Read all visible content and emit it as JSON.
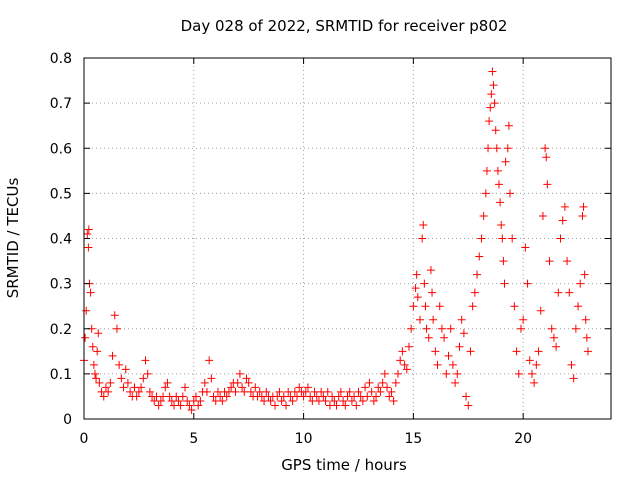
{
  "chart_data": {
    "type": "scatter",
    "title": "Day 028 of 2022, SRMTID for receiver p802",
    "xlabel": "GPS time / hours",
    "ylabel": "SRMTID / TECUs",
    "xlim": [
      0,
      24
    ],
    "ylim": [
      0,
      0.8
    ],
    "x_ticks": [
      0,
      5,
      10,
      15,
      20
    ],
    "y_ticks": [
      0,
      0.1,
      0.2,
      0.3,
      0.4,
      0.5,
      0.6,
      0.7,
      0.8
    ],
    "x_tick_labels": [
      "0",
      "5",
      "10",
      "15",
      "20"
    ],
    "y_tick_labels": [
      "0",
      "0.1",
      "0.2",
      "0.3",
      "0.4",
      "0.5",
      "0.6",
      "0.7",
      "0.8"
    ],
    "grid": true,
    "marker": "+",
    "color": "#ff0000",
    "series": [
      {
        "name": "SRMTID",
        "points": [
          [
            0.0,
            0.13
          ],
          [
            0.05,
            0.18
          ],
          [
            0.1,
            0.24
          ],
          [
            0.15,
            0.41
          ],
          [
            0.2,
            0.38
          ],
          [
            0.22,
            0.42
          ],
          [
            0.25,
            0.3
          ],
          [
            0.3,
            0.28
          ],
          [
            0.35,
            0.2
          ],
          [
            0.4,
            0.16
          ],
          [
            0.45,
            0.12
          ],
          [
            0.5,
            0.1
          ],
          [
            0.55,
            0.09
          ],
          [
            0.6,
            0.15
          ],
          [
            0.65,
            0.19
          ],
          [
            0.7,
            0.08
          ],
          [
            0.8,
            0.06
          ],
          [
            0.9,
            0.05
          ],
          [
            1.0,
            0.07
          ],
          [
            1.1,
            0.06
          ],
          [
            1.2,
            0.08
          ],
          [
            1.3,
            0.14
          ],
          [
            1.4,
            0.23
          ],
          [
            1.5,
            0.2
          ],
          [
            1.6,
            0.12
          ],
          [
            1.7,
            0.09
          ],
          [
            1.8,
            0.07
          ],
          [
            1.9,
            0.11
          ],
          [
            2.0,
            0.08
          ],
          [
            2.1,
            0.06
          ],
          [
            2.2,
            0.05
          ],
          [
            2.3,
            0.07
          ],
          [
            2.4,
            0.05
          ],
          [
            2.5,
            0.06
          ],
          [
            2.6,
            0.07
          ],
          [
            2.7,
            0.09
          ],
          [
            2.8,
            0.13
          ],
          [
            2.9,
            0.1
          ],
          [
            3.0,
            0.06
          ],
          [
            3.1,
            0.05
          ],
          [
            3.2,
            0.04
          ],
          [
            3.3,
            0.05
          ],
          [
            3.4,
            0.03
          ],
          [
            3.5,
            0.04
          ],
          [
            3.6,
            0.05
          ],
          [
            3.7,
            0.07
          ],
          [
            3.8,
            0.08
          ],
          [
            3.9,
            0.05
          ],
          [
            4.0,
            0.04
          ],
          [
            4.1,
            0.03
          ],
          [
            4.2,
            0.05
          ],
          [
            4.3,
            0.04
          ],
          [
            4.4,
            0.03
          ],
          [
            4.5,
            0.05
          ],
          [
            4.6,
            0.07
          ],
          [
            4.7,
            0.04
          ],
          [
            4.8,
            0.03
          ],
          [
            4.9,
            0.02
          ],
          [
            5.0,
            0.04
          ],
          [
            5.1,
            0.05
          ],
          [
            5.2,
            0.03
          ],
          [
            5.3,
            0.04
          ],
          [
            5.4,
            0.06
          ],
          [
            5.5,
            0.08
          ],
          [
            5.6,
            0.06
          ],
          [
            5.7,
            0.13
          ],
          [
            5.8,
            0.09
          ],
          [
            5.9,
            0.05
          ],
          [
            6.0,
            0.04
          ],
          [
            6.1,
            0.06
          ],
          [
            6.2,
            0.05
          ],
          [
            6.3,
            0.04
          ],
          [
            6.4,
            0.06
          ],
          [
            6.5,
            0.05
          ],
          [
            6.6,
            0.06
          ],
          [
            6.7,
            0.07
          ],
          [
            6.8,
            0.08
          ],
          [
            6.9,
            0.06
          ],
          [
            7.0,
            0.08
          ],
          [
            7.1,
            0.1
          ],
          [
            7.2,
            0.07
          ],
          [
            7.3,
            0.06
          ],
          [
            7.4,
            0.09
          ],
          [
            7.5,
            0.08
          ],
          [
            7.6,
            0.06
          ],
          [
            7.7,
            0.05
          ],
          [
            7.8,
            0.07
          ],
          [
            7.9,
            0.05
          ],
          [
            8.0,
            0.06
          ],
          [
            8.1,
            0.05
          ],
          [
            8.2,
            0.04
          ],
          [
            8.3,
            0.06
          ],
          [
            8.4,
            0.05
          ],
          [
            8.5,
            0.04
          ],
          [
            8.6,
            0.05
          ],
          [
            8.7,
            0.03
          ],
          [
            8.8,
            0.05
          ],
          [
            8.9,
            0.06
          ],
          [
            9.0,
            0.04
          ],
          [
            9.1,
            0.05
          ],
          [
            9.2,
            0.03
          ],
          [
            9.3,
            0.06
          ],
          [
            9.4,
            0.05
          ],
          [
            9.5,
            0.04
          ],
          [
            9.6,
            0.06
          ],
          [
            9.7,
            0.05
          ],
          [
            9.8,
            0.07
          ],
          [
            9.9,
            0.06
          ],
          [
            10.0,
            0.05
          ],
          [
            10.1,
            0.06
          ],
          [
            10.2,
            0.07
          ],
          [
            10.3,
            0.05
          ],
          [
            10.4,
            0.04
          ],
          [
            10.5,
            0.06
          ],
          [
            10.6,
            0.05
          ],
          [
            10.7,
            0.04
          ],
          [
            10.8,
            0.06
          ],
          [
            10.9,
            0.05
          ],
          [
            11.0,
            0.04
          ],
          [
            11.1,
            0.06
          ],
          [
            11.2,
            0.03
          ],
          [
            11.3,
            0.05
          ],
          [
            11.4,
            0.04
          ],
          [
            11.5,
            0.03
          ],
          [
            11.6,
            0.05
          ],
          [
            11.7,
            0.06
          ],
          [
            11.8,
            0.04
          ],
          [
            11.9,
            0.03
          ],
          [
            12.0,
            0.05
          ],
          [
            12.1,
            0.06
          ],
          [
            12.2,
            0.04
          ],
          [
            12.3,
            0.05
          ],
          [
            12.4,
            0.03
          ],
          [
            12.5,
            0.06
          ],
          [
            12.6,
            0.05
          ],
          [
            12.7,
            0.04
          ],
          [
            12.8,
            0.07
          ],
          [
            12.9,
            0.05
          ],
          [
            13.0,
            0.08
          ],
          [
            13.1,
            0.06
          ],
          [
            13.2,
            0.04
          ],
          [
            13.3,
            0.05
          ],
          [
            13.4,
            0.07
          ],
          [
            13.5,
            0.06
          ],
          [
            13.6,
            0.08
          ],
          [
            13.7,
            0.1
          ],
          [
            13.8,
            0.07
          ],
          [
            13.9,
            0.05
          ],
          [
            14.0,
            0.06
          ],
          [
            14.1,
            0.04
          ],
          [
            14.2,
            0.08
          ],
          [
            14.3,
            0.1
          ],
          [
            14.4,
            0.13
          ],
          [
            14.5,
            0.15
          ],
          [
            14.6,
            0.12
          ],
          [
            14.7,
            0.11
          ],
          [
            14.8,
            0.16
          ],
          [
            14.9,
            0.2
          ],
          [
            15.0,
            0.25
          ],
          [
            15.1,
            0.29
          ],
          [
            15.15,
            0.32
          ],
          [
            15.2,
            0.27
          ],
          [
            15.3,
            0.22
          ],
          [
            15.4,
            0.4
          ],
          [
            15.45,
            0.43
          ],
          [
            15.5,
            0.3
          ],
          [
            15.55,
            0.25
          ],
          [
            15.6,
            0.2
          ],
          [
            15.7,
            0.18
          ],
          [
            15.8,
            0.33
          ],
          [
            15.85,
            0.28
          ],
          [
            15.9,
            0.22
          ],
          [
            16.0,
            0.15
          ],
          [
            16.1,
            0.12
          ],
          [
            16.2,
            0.25
          ],
          [
            16.3,
            0.2
          ],
          [
            16.4,
            0.18
          ],
          [
            16.5,
            0.1
          ],
          [
            16.6,
            0.14
          ],
          [
            16.7,
            0.2
          ],
          [
            16.8,
            0.12
          ],
          [
            16.9,
            0.08
          ],
          [
            17.0,
            0.1
          ],
          [
            17.1,
            0.16
          ],
          [
            17.2,
            0.22
          ],
          [
            17.3,
            0.19
          ],
          [
            17.4,
            0.05
          ],
          [
            17.5,
            0.03
          ],
          [
            17.6,
            0.15
          ],
          [
            17.7,
            0.25
          ],
          [
            17.8,
            0.28
          ],
          [
            17.9,
            0.32
          ],
          [
            18.0,
            0.36
          ],
          [
            18.1,
            0.4
          ],
          [
            18.2,
            0.45
          ],
          [
            18.3,
            0.5
          ],
          [
            18.35,
            0.55
          ],
          [
            18.4,
            0.6
          ],
          [
            18.45,
            0.66
          ],
          [
            18.5,
            0.69
          ],
          [
            18.55,
            0.72
          ],
          [
            18.6,
            0.77
          ],
          [
            18.65,
            0.74
          ],
          [
            18.7,
            0.7
          ],
          [
            18.75,
            0.64
          ],
          [
            18.8,
            0.6
          ],
          [
            18.85,
            0.55
          ],
          [
            18.9,
            0.52
          ],
          [
            18.95,
            0.48
          ],
          [
            19.0,
            0.43
          ],
          [
            19.05,
            0.4
          ],
          [
            19.1,
            0.35
          ],
          [
            19.15,
            0.3
          ],
          [
            19.2,
            0.57
          ],
          [
            19.3,
            0.6
          ],
          [
            19.35,
            0.65
          ],
          [
            19.4,
            0.5
          ],
          [
            19.5,
            0.4
          ],
          [
            19.6,
            0.25
          ],
          [
            19.7,
            0.15
          ],
          [
            19.8,
            0.1
          ],
          [
            19.9,
            0.2
          ],
          [
            20.0,
            0.22
          ],
          [
            20.1,
            0.38
          ],
          [
            20.2,
            0.3
          ],
          [
            20.3,
            0.13
          ],
          [
            20.4,
            0.1
          ],
          [
            20.5,
            0.08
          ],
          [
            20.6,
            0.12
          ],
          [
            20.7,
            0.15
          ],
          [
            20.8,
            0.24
          ],
          [
            20.9,
            0.45
          ],
          [
            21.0,
            0.6
          ],
          [
            21.05,
            0.58
          ],
          [
            21.1,
            0.52
          ],
          [
            21.2,
            0.35
          ],
          [
            21.3,
            0.2
          ],
          [
            21.4,
            0.18
          ],
          [
            21.5,
            0.16
          ],
          [
            21.6,
            0.28
          ],
          [
            21.7,
            0.4
          ],
          [
            21.8,
            0.44
          ],
          [
            21.9,
            0.47
          ],
          [
            22.0,
            0.35
          ],
          [
            22.1,
            0.28
          ],
          [
            22.2,
            0.12
          ],
          [
            22.3,
            0.09
          ],
          [
            22.4,
            0.2
          ],
          [
            22.5,
            0.25
          ],
          [
            22.6,
            0.3
          ],
          [
            22.7,
            0.45
          ],
          [
            22.75,
            0.47
          ],
          [
            22.8,
            0.32
          ],
          [
            22.85,
            0.22
          ],
          [
            22.9,
            0.18
          ],
          [
            22.95,
            0.15
          ]
        ]
      }
    ]
  }
}
